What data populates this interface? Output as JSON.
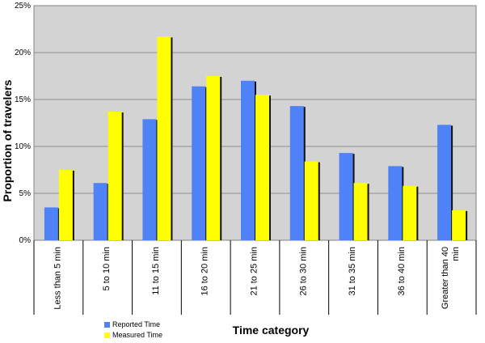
{
  "chart_data": {
    "type": "bar",
    "xlabel": "Time category",
    "ylabel": "Proportion of travelers",
    "ylim": [
      0,
      25
    ],
    "yticks": [
      0,
      5,
      10,
      15,
      20,
      25
    ],
    "ytick_labels": [
      "0%",
      "5%",
      "10%",
      "15%",
      "20%",
      "25%"
    ],
    "grid": true,
    "legend_position": "bottom-left",
    "categories": [
      [
        "Less than 5 min"
      ],
      [
        "5 to 10 min"
      ],
      [
        "11 to 15 min"
      ],
      [
        "16 to 20 min"
      ],
      [
        "21 to 25 min"
      ],
      [
        "26 to 30 min"
      ],
      [
        "31 to 35 min"
      ],
      [
        "36 to 40 min"
      ],
      [
        "Greater than 40",
        "min"
      ]
    ],
    "series": [
      {
        "name": "Reported Time",
        "color": "#4f81f7",
        "values": [
          3.5,
          6.1,
          12.9,
          16.4,
          17.0,
          14.3,
          9.3,
          7.9,
          12.3
        ]
      },
      {
        "name": "Measured Time",
        "color": "#ffff00",
        "values": [
          7.5,
          13.7,
          21.7,
          17.5,
          15.5,
          8.4,
          6.1,
          5.8,
          3.2
        ]
      }
    ]
  }
}
